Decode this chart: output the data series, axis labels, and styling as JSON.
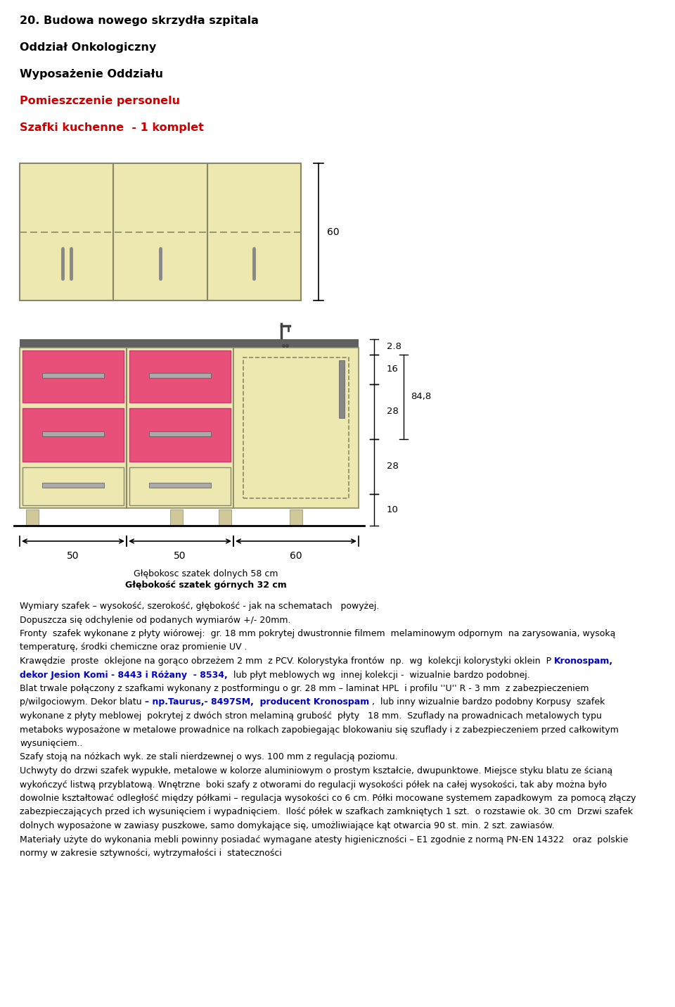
{
  "title1": "20. Budowa nowego skrzydła szpitala",
  "title2": "Oddział Onkologiczny",
  "title3": "Wyposażenie Oddziału",
  "title4_red": "Pomieszczenie personelu",
  "title5_red": "Szafki kuchenne  - 1 komplet",
  "cabinet_color": "#ede8b0",
  "pink_color": "#e8507a",
  "countertop_color": "#606060",
  "border_color": "#888866",
  "handle_color": "#888888",
  "dim_color": "#000000",
  "dim_2_8": "2.8",
  "dim_16": "16",
  "dim_28a": "28",
  "dim_84_8": "84,8",
  "dim_28b": "28",
  "dim_10": "10",
  "dim_60_upper": "60",
  "dim_50a": "50",
  "dim_50b": "50",
  "dim_60b": "60",
  "depth_line1": "Głębokosc szatek dolnych 58 cm",
  "depth_line2": "Głębokość szatek górnych 32 cm",
  "body_lines": [
    {
      "text": "Wymiary szafek – wysokość, szerokość, głębokość - jak na schematach   powyżej.",
      "parts": null
    },
    {
      "text": "Dopuszcza się odchylenie od podanych wymiarów +/- 20mm.",
      "parts": null
    },
    {
      "text": "Fronty  szafek wykonane z płyty wiórowej:  gr. 18 mm pokrytej dwustronnie filmem  melaminowym odpornym  na zarysowania, wysoką",
      "parts": null
    },
    {
      "text": "temperaturę, środki chemiczne oraz promienie UV .",
      "parts": null
    },
    {
      "text": null,
      "parts": [
        {
          "t": "Krawędzie  proste  oklejone na gorąco obrzeżem 2 mm  z PCV. Kolorystyka frontów  np.  wg  kolekcji kolorystyki oklein  P ",
          "bold": false,
          "color": "black"
        },
        {
          "t": "Kronospam,",
          "bold": true,
          "color": "#0000cc"
        }
      ]
    },
    {
      "text": null,
      "parts": [
        {
          "t": "dekor Jesion Komi - 8443 i Różany  - 8534,",
          "bold": true,
          "color": "#0000cc"
        },
        {
          "t": "  lub płyt meblowych wg  innej kolekcji -  wizualnie bardzo podobnej.",
          "bold": false,
          "color": "black"
        }
      ]
    },
    {
      "text": "Blat trwale połączony z szafkami wykonany z postformingu o gr. 28 mm – laminat HPL  i profilu ''U'' R - 3 mm  z zabezpieczeniem",
      "parts": null
    },
    {
      "text": null,
      "parts": [
        {
          "t": "p/wilgociowym. Dekor blatu ",
          "bold": false,
          "color": "black"
        },
        {
          "t": "– np.Taurus,- 8497SM,  producent Kronospam",
          "bold": true,
          "color": "#0000cc"
        },
        {
          "t": " ,  lub inny wizualnie bardzo podobny Korpusy  szafek",
          "bold": false,
          "color": "black"
        }
      ]
    },
    {
      "text": "wykonane z płyty meblowej  pokrytej z dwóch stron melaminą grubość  płyty   18 mm.  Szuflady na prowadnicach metalowych typu",
      "parts": null
    },
    {
      "text": "metaboks wyposażone w metalowe prowadnice na rolkach zapobiegając blokowaniu się szuflady i z zabezpieczeniem przed całkowitym",
      "parts": null
    },
    {
      "text": "wysunięciem..",
      "parts": null
    },
    {
      "text": "Szafy stoją na nóżkach wyk. ze stali nierdzewnej o wys. 100 mm z regulacją poziomu.",
      "parts": null
    },
    {
      "text": "Uchwyty do drzwi szafek wypukłe, metalowe w kolorze aluminiowym o prostym kształcie, dwupunktowe. Miejsce styku blatu ze ścianą",
      "parts": null
    },
    {
      "text": "wykończyć listwą przyblatową. Wnętrzne  boki szafy z otworami do regulacji wysokości półek na całej wysokości, tak aby można było",
      "parts": null
    },
    {
      "text": "dowolnie kształtować odległość między półkami – regulacja wysokości co 6 cm. Półki mocowane systemem zapadkowym  za pomocą złączy",
      "parts": null
    },
    {
      "text": "zabezpieczających przed ich wysunięciem i wypadnięciem.  Ilość półek w szafkach zamkniętych 1 szt.  o rozstawie ok. 30 cm  Drzwi szafek",
      "parts": null
    },
    {
      "text": "dolnych wyposażone w zawiasy puszkowe, samo domykające się, umożliwiające kąt otwarcia 90 st. min. 2 szt. zawiasów.",
      "parts": null
    },
    {
      "text": "Materiały użyte do wykonania mebli powinny posiadać wymagane atesty higieniczności – E1 zgodnie z normą PN-EN 14322   oraz  polskie",
      "parts": null
    },
    {
      "text": "normy w zakresie sztywności, wytrzymałości i  stateczności",
      "parts": null
    }
  ]
}
